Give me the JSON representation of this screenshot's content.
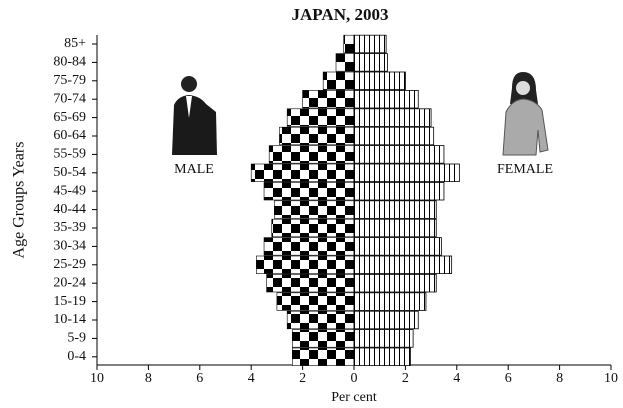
{
  "chart_data": {
    "type": "pyramid",
    "title": "JAPAN, 2003",
    "x_label": "Per cent",
    "y_label": "Age Groups Years",
    "labels": [
      "MALE",
      "FEMALE"
    ],
    "categories": [
      "85+",
      "80-84",
      "75-79",
      "70-74",
      "65-69",
      "60-64",
      "55-59",
      "50-54",
      "45-49",
      "40-44",
      "35-39",
      "30-34",
      "25-29",
      "20-24",
      "15-19",
      "10-14",
      "5-9",
      "0-4"
    ],
    "series": [
      {
        "name": "MALE",
        "color": "#000000",
        "values": [
          0.4,
          0.7,
          1.2,
          2.0,
          2.6,
          2.9,
          3.3,
          4.0,
          3.5,
          3.1,
          3.2,
          3.5,
          3.8,
          3.4,
          3.0,
          2.6,
          2.4,
          2.4
        ]
      },
      {
        "name": "FEMALE",
        "color": "#000000",
        "values": [
          1.25,
          1.3,
          2.0,
          2.5,
          3.0,
          3.1,
          3.5,
          4.1,
          3.5,
          3.2,
          3.2,
          3.4,
          3.8,
          3.2,
          2.8,
          2.5,
          2.3,
          2.2
        ]
      }
    ],
    "xlim": [
      -10,
      10
    ],
    "xticks": [
      {
        "value": -10,
        "label": "10"
      },
      {
        "value": -8,
        "label": "8"
      },
      {
        "value": -6,
        "label": "6"
      },
      {
        "value": -4,
        "label": "4"
      },
      {
        "value": -2,
        "label": "2"
      },
      0,
      2,
      4,
      6,
      8,
      10
    ]
  }
}
